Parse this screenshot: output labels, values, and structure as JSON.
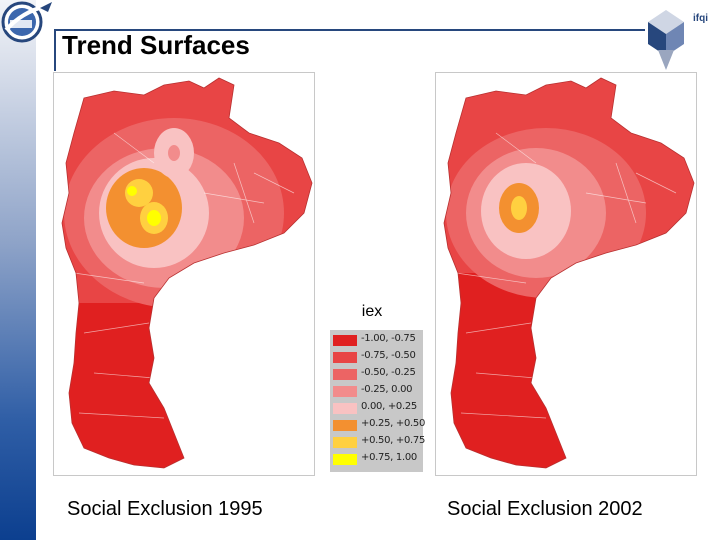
{
  "slide": {
    "title": "Trend Surfaces",
    "logo_right_text": "ifqi"
  },
  "maps": [
    {
      "caption": "Social Exclusion 1995"
    },
    {
      "caption": "Social Exclusion 2002"
    }
  ],
  "legend": {
    "title": "iex",
    "items": [
      {
        "label": "-1.00, -0.75",
        "color": "#e02020"
      },
      {
        "label": "-0.75, -0.50",
        "color": "#e84545"
      },
      {
        "label": "-0.50, -0.25",
        "color": "#ec6464"
      },
      {
        "label": "-0.25, 0.00",
        "color": "#f28c8c"
      },
      {
        "label": "0.00, +0.25",
        "color": "#f9c2c2"
      },
      {
        "label": "+0.25, +0.50",
        "color": "#f39030"
      },
      {
        "label": "+0.50, +0.75",
        "color": "#ffd040"
      },
      {
        "label": "+0.75, 1.00",
        "color": "#ffff00"
      }
    ]
  },
  "colors": {
    "title_line": "#27477d",
    "sidebar_top": "#f2f4f8",
    "sidebar_bottom": "#0c3f8f"
  },
  "icons": {
    "logo_left": "inpe-logo-icon",
    "logo_right": "cube-logo-icon"
  }
}
